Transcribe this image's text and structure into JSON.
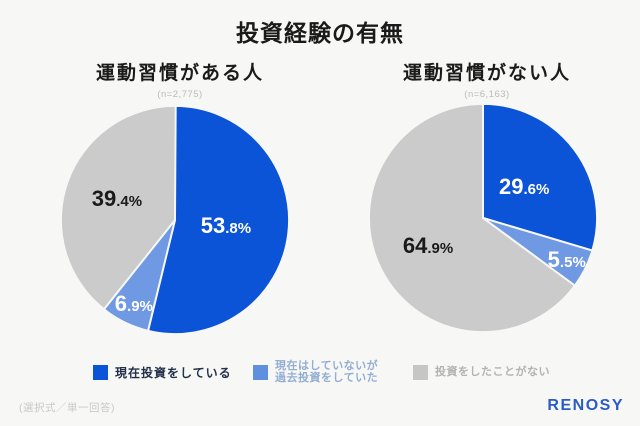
{
  "page": {
    "title": "投資経験の有無",
    "footnote": "(選択式／単一回答)",
    "brand": "RENOSY"
  },
  "colors": {
    "background": "#f7f7f5",
    "slice_current": "#0b53d7",
    "slice_past": "#6f99e2",
    "slice_never": "#cbcbcb",
    "brand_blue": "#2a5bc8",
    "title_text": "#1a1a1a",
    "sample_size_text": "#bbbbbb",
    "footnote_text": "#c9c9c7"
  },
  "legend": {
    "items": [
      {
        "key": "current",
        "lines": [
          "現在投資をしている"
        ],
        "swatch": "#0b53d7",
        "text_color": "#22304a"
      },
      {
        "key": "past",
        "lines": [
          "現在はしていないが",
          "過去投資をしていた"
        ],
        "swatch": "#5f90de",
        "text_color": "#93aed2"
      },
      {
        "key": "never",
        "lines": [
          "投資をしたことがない"
        ],
        "swatch": "#c6c6c6",
        "text_color": "#b3b3b3"
      }
    ]
  },
  "chart_data": [
    {
      "type": "pie",
      "title": "運動習慣がある人",
      "sample_size_label": "(n=2,775)",
      "categories": [
        "現在投資をしている",
        "現在はしていないが過去投資をしていた",
        "投資をしたことがない"
      ],
      "values": [
        53.8,
        6.9,
        39.4
      ],
      "unit": "%",
      "colors": [
        "#0b53d7",
        "#6f99e2",
        "#cbcbcb"
      ],
      "label_colors": [
        "#ffffff",
        "#ffffff",
        "#1a1a1a"
      ],
      "start_angle": "12-oclock",
      "direction": "clockwise",
      "legend_position": "bottom"
    },
    {
      "type": "pie",
      "title": "運動習慣がない人",
      "sample_size_label": "(n=6,163)",
      "categories": [
        "現在投資をしている",
        "現在はしていないが過去投資をしていた",
        "投資をしたことがない"
      ],
      "values": [
        29.6,
        5.5,
        64.9
      ],
      "unit": "%",
      "colors": [
        "#0b53d7",
        "#6f99e2",
        "#cbcbcb"
      ],
      "label_colors": [
        "#ffffff",
        "#ffffff",
        "#1a1a1a"
      ],
      "start_angle": "12-oclock",
      "direction": "clockwise",
      "legend_position": "bottom"
    }
  ]
}
